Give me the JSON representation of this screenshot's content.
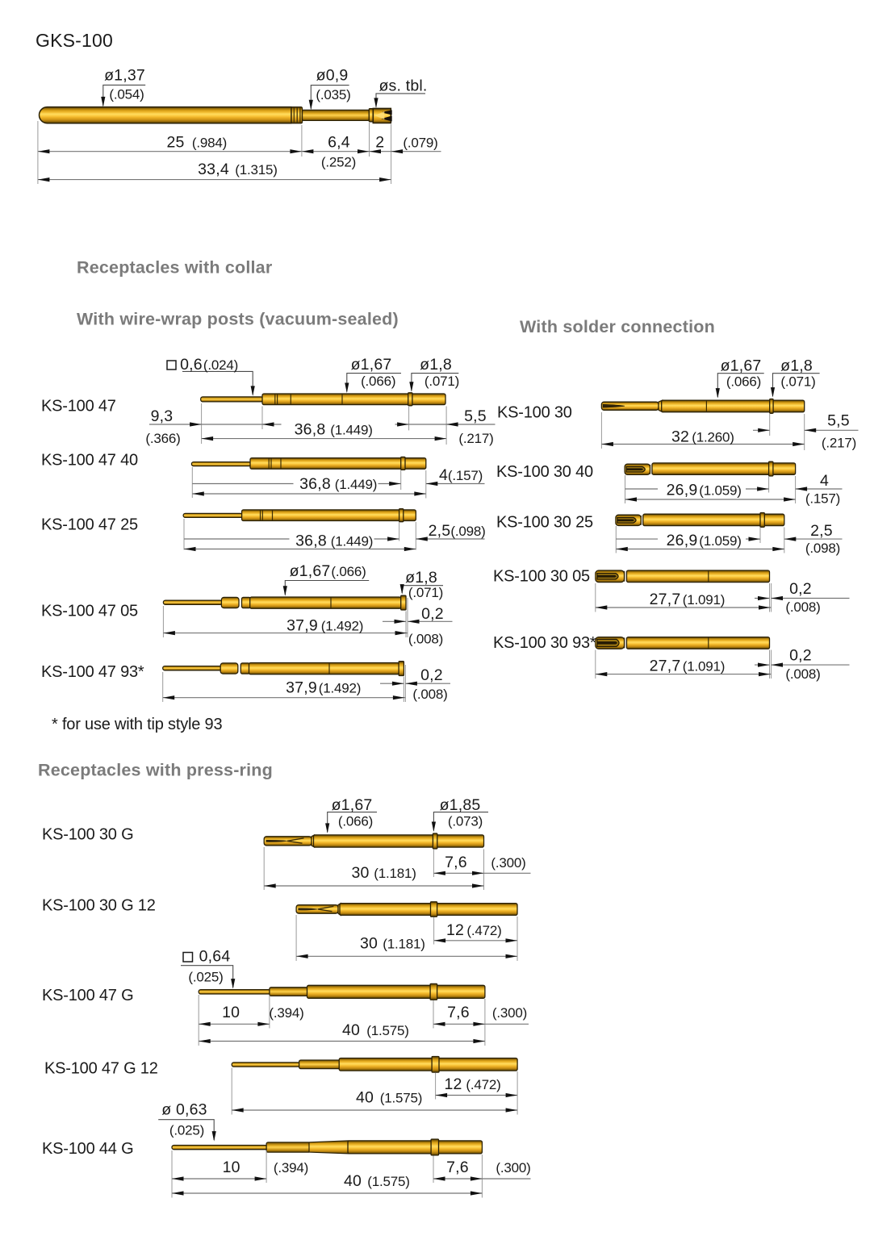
{
  "title": {
    "part": "GKS-100"
  },
  "headings": {
    "collar": "Receptacles with collar",
    "wirewrap": "With wire-wrap posts (vacuum-sealed)",
    "solder": "With solder connection",
    "pressring": "Receptacles with press-ring"
  },
  "footnote": "* for use with tip style 93",
  "colors": {
    "gold": "#f2bd31",
    "heading_gray": "#7b7b7b",
    "text": "#1a1a1a",
    "line": "#7d7d7d"
  },
  "gks": {
    "dia_barrel_mm": "ø1,37",
    "dia_barrel_in": "(.054)",
    "dia_plunger_mm": "ø0,9",
    "dia_plunger_in": "(.035)",
    "tip_dia_note": "øs. tbl.",
    "len_barrel_mm": "25",
    "len_barrel_in": "(.984)",
    "len_plunger_mm": "6,4",
    "len_plunger_in": "(.252)",
    "len_tip_mm": "2",
    "len_tip_in": "(.079)",
    "len_total_mm": "33,4",
    "len_total_in": "(1.315)"
  },
  "wirewrap_rows": {
    "ks10047": {
      "label": "KS-100 47",
      "sq_mm": "0,6",
      "sq_in": "(.024)",
      "dia1_mm": "ø1,67",
      "dia1_in": "(.066)",
      "dia2_mm": "ø1,8",
      "dia2_in": "(.071)",
      "post_mm": "9,3",
      "post_in": "(.366)",
      "len_mm": "36,8",
      "len_in": "(1.449)",
      "end_mm": "5,5",
      "end_in": "(.217)"
    },
    "ks1004740": {
      "label": "KS-100 47 40",
      "len_mm": "36,8",
      "len_in": "(1.449)",
      "end_mm": "4",
      "end_in": "(.157)"
    },
    "ks1004725": {
      "label": "KS-100 47 25",
      "len_mm": "36,8",
      "len_in": "(1.449)",
      "end_mm": "2,5",
      "end_in": "(.098)"
    },
    "ks1004705": {
      "label": "KS-100 47 05",
      "dia1_mm": "ø1,67",
      "dia1_in": "(.066)",
      "dia2_mm": "ø1,8",
      "dia2_in": "(.071)",
      "len_mm": "37,9",
      "len_in": "(1.492)",
      "end_mm": "0,2",
      "end_in": "(.008)"
    },
    "ks1004793": {
      "label": "KS-100 47 93*",
      "len_mm": "37,9",
      "len_in": "(1.492)",
      "end_mm": "0,2",
      "end_in": "(.008)"
    }
  },
  "solder_rows": {
    "ks10030": {
      "label": "KS-100 30",
      "dia1_mm": "ø1,67",
      "dia1_in": "(.066)",
      "dia2_mm": "ø1,8",
      "dia2_in": "(.071)",
      "len_mm": "32",
      "len_in": "(1.260)",
      "end_mm": "5,5",
      "end_in": "(.217)"
    },
    "ks1003040": {
      "label": "KS-100 30 40",
      "len_mm": "26,9",
      "len_in": "(1.059)",
      "end_mm": "4",
      "end_in": "(.157)"
    },
    "ks1003025": {
      "label": "KS-100 30 25",
      "len_mm": "26,9",
      "len_in": "(1.059)",
      "end_mm": "2,5",
      "end_in": "(.098)"
    },
    "ks1003005": {
      "label": "KS-100 30 05",
      "len_mm": "27,7",
      "len_in": "(1.091)",
      "end_mm": "0,2",
      "end_in": "(.008)"
    },
    "ks1003093": {
      "label": "KS-100 30 93*",
      "len_mm": "27,7",
      "len_in": "(1.091)",
      "end_mm": "0,2",
      "end_in": "(.008)"
    }
  },
  "pressring_rows": {
    "ks10030g": {
      "label": "KS-100 30 G",
      "dia1_mm": "ø1,67",
      "dia1_in": "(.066)",
      "dia2_mm": "ø1,85",
      "dia2_in": "(.073)",
      "len_mm": "30",
      "len_in": "(1.181)",
      "end_mm": "7,6",
      "end_in": "(.300)"
    },
    "ks10030g12": {
      "label": "KS-100 30 G 12",
      "len_mm": "30",
      "len_in": "(1.181)",
      "end_mm": "12",
      "end_in": "(.472)"
    },
    "ks10047g": {
      "label": "KS-100 47 G",
      "sq_mm": "0,64",
      "sq_in": "(.025)",
      "post_mm": "10",
      "post_in": "(.394)",
      "len_mm": "40",
      "len_in": "(1.575)",
      "end_mm": "7,6",
      "end_in": "(.300)"
    },
    "ks10047g12": {
      "label": "KS-100 47 G 12",
      "len_mm": "40",
      "len_in": "(1.575)",
      "end_mm": "12",
      "end_in": "(.472)"
    },
    "ks10044g": {
      "label": "KS-100 44 G",
      "dia_mm": "ø 0,63",
      "dia_in": "(.025)",
      "post_mm": "10",
      "post_in": "(.394)",
      "len_mm": "40",
      "len_in": "(1.575)",
      "end_mm": "7,6",
      "end_in": "(.300)"
    }
  }
}
